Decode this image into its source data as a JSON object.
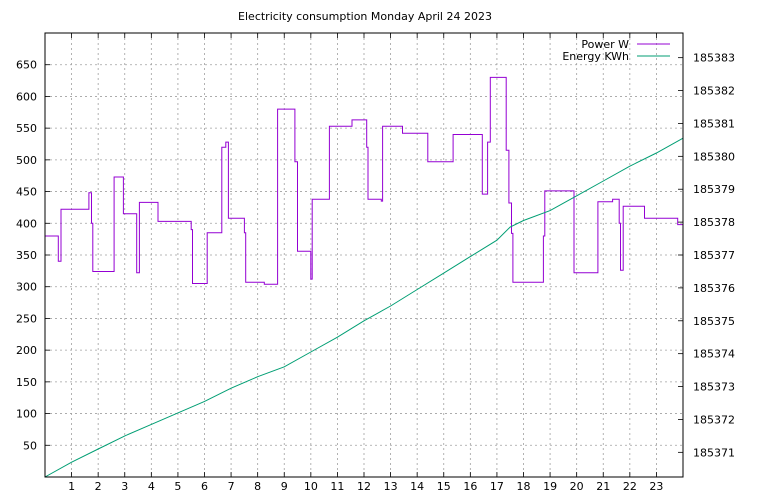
{
  "chart_data": {
    "type": "line",
    "title": "Electricity consumption Monday April 24 2023",
    "xlabel": "",
    "ylabel": "",
    "y2label": "",
    "xlim": [
      0,
      24
    ],
    "ylim": [
      0,
      700
    ],
    "y2lim": [
      185370.25,
      185383.75
    ],
    "x_ticks": [
      1,
      2,
      3,
      4,
      5,
      6,
      7,
      8,
      9,
      10,
      11,
      12,
      13,
      14,
      15,
      16,
      17,
      18,
      19,
      20,
      21,
      22,
      23
    ],
    "y_ticks": [
      50,
      100,
      150,
      200,
      250,
      300,
      350,
      400,
      450,
      500,
      550,
      600,
      650
    ],
    "y2_ticks": [
      185371,
      185372,
      185373,
      185374,
      185375,
      185376,
      185377,
      185378,
      185379,
      185380,
      185381,
      185382,
      185383
    ],
    "grid": true,
    "legend_position": "top-right",
    "series": [
      {
        "name": "Power W",
        "axis": "y1",
        "color": "#9400d3",
        "step": true,
        "points": [
          [
            0,
            380
          ],
          [
            0.5,
            380
          ],
          [
            0.5,
            340
          ],
          [
            0.6,
            340
          ],
          [
            0.6,
            422
          ],
          [
            1.65,
            422
          ],
          [
            1.65,
            448
          ],
          [
            1.75,
            448
          ],
          [
            1.75,
            400
          ],
          [
            1.8,
            400
          ],
          [
            1.8,
            324
          ],
          [
            2.6,
            324
          ],
          [
            2.6,
            473
          ],
          [
            2.95,
            473
          ],
          [
            2.95,
            415
          ],
          [
            3.45,
            415
          ],
          [
            3.45,
            322
          ],
          [
            3.55,
            322
          ],
          [
            3.55,
            433
          ],
          [
            4.25,
            433
          ],
          [
            4.25,
            403
          ],
          [
            5.5,
            403
          ],
          [
            5.5,
            390
          ],
          [
            5.55,
            390
          ],
          [
            5.55,
            305
          ],
          [
            6.1,
            305
          ],
          [
            6.1,
            385
          ],
          [
            6.65,
            385
          ],
          [
            6.65,
            520
          ],
          [
            6.8,
            520
          ],
          [
            6.8,
            528
          ],
          [
            6.9,
            528
          ],
          [
            6.9,
            408
          ],
          [
            7.5,
            408
          ],
          [
            7.5,
            385
          ],
          [
            7.55,
            385
          ],
          [
            7.55,
            307
          ],
          [
            8.25,
            307
          ],
          [
            8.25,
            304
          ],
          [
            8.75,
            304
          ],
          [
            8.75,
            580
          ],
          [
            9.4,
            580
          ],
          [
            9.4,
            497
          ],
          [
            9.5,
            497
          ],
          [
            9.5,
            356
          ],
          [
            10,
            356
          ],
          [
            10,
            312
          ],
          [
            10.05,
            312
          ],
          [
            10.05,
            438
          ],
          [
            10.7,
            438
          ],
          [
            10.7,
            553
          ],
          [
            11.55,
            553
          ],
          [
            11.55,
            563
          ],
          [
            12.1,
            563
          ],
          [
            12.1,
            520
          ],
          [
            12.15,
            520
          ],
          [
            12.15,
            438
          ],
          [
            12.65,
            438
          ],
          [
            12.65,
            435
          ],
          [
            12.7,
            435
          ],
          [
            12.7,
            553
          ],
          [
            13.45,
            553
          ],
          [
            13.45,
            542
          ],
          [
            14.4,
            542
          ],
          [
            14.4,
            497
          ],
          [
            15.35,
            497
          ],
          [
            15.35,
            540
          ],
          [
            16.45,
            540
          ],
          [
            16.45,
            446
          ],
          [
            16.65,
            446
          ],
          [
            16.65,
            528
          ],
          [
            16.75,
            528
          ],
          [
            16.75,
            630
          ],
          [
            17.35,
            630
          ],
          [
            17.35,
            515
          ],
          [
            17.45,
            515
          ],
          [
            17.45,
            432
          ],
          [
            17.55,
            432
          ],
          [
            17.55,
            384
          ],
          [
            17.6,
            384
          ],
          [
            17.6,
            307
          ],
          [
            18.75,
            307
          ],
          [
            18.75,
            380
          ],
          [
            18.8,
            380
          ],
          [
            18.8,
            451
          ],
          [
            19.9,
            451
          ],
          [
            19.9,
            322
          ],
          [
            20.8,
            322
          ],
          [
            20.8,
            434
          ],
          [
            21.35,
            434
          ],
          [
            21.35,
            438
          ],
          [
            21.6,
            438
          ],
          [
            21.6,
            400
          ],
          [
            21.65,
            400
          ],
          [
            21.65,
            326
          ],
          [
            21.75,
            326
          ],
          [
            21.75,
            427
          ],
          [
            22.55,
            427
          ],
          [
            22.55,
            408
          ],
          [
            23.8,
            408
          ],
          [
            23.8,
            398
          ],
          [
            24,
            398
          ]
        ]
      },
      {
        "name": "Energy KWh",
        "axis": "y2",
        "color": "#009e73",
        "step": false,
        "points": [
          [
            0,
            185370.25
          ],
          [
            1,
            185370.7
          ],
          [
            2,
            185371.1
          ],
          [
            3,
            185371.5
          ],
          [
            4,
            185371.85
          ],
          [
            5,
            185372.2
          ],
          [
            6,
            185372.55
          ],
          [
            7,
            185372.95
          ],
          [
            8,
            185373.3
          ],
          [
            9,
            185373.6
          ],
          [
            10,
            185374.05
          ],
          [
            11,
            185374.5
          ],
          [
            12,
            185375.0
          ],
          [
            13,
            185375.45
          ],
          [
            14,
            185375.95
          ],
          [
            15,
            185376.45
          ],
          [
            16,
            185376.95
          ],
          [
            17,
            185377.45
          ],
          [
            17.5,
            185377.85
          ],
          [
            18,
            185378.05
          ],
          [
            19,
            185378.35
          ],
          [
            20,
            185378.8
          ],
          [
            21,
            185379.25
          ],
          [
            22,
            185379.7
          ],
          [
            23,
            185380.1
          ],
          [
            24,
            185380.55
          ]
        ]
      }
    ]
  }
}
